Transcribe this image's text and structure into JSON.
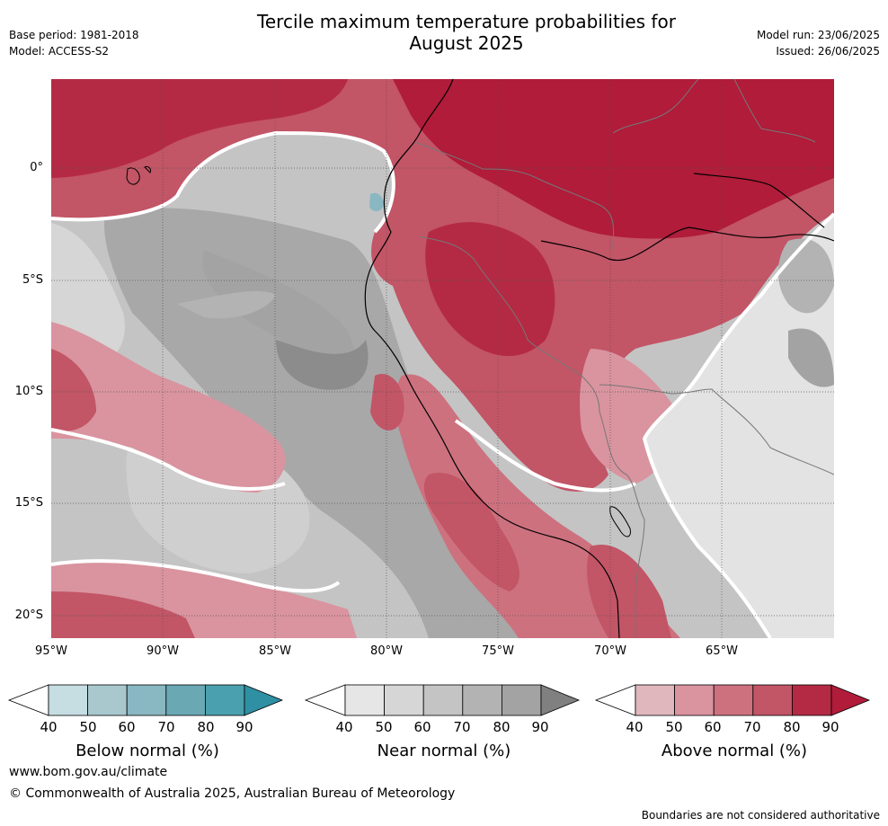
{
  "header": {
    "title_line1": "Tercile maximum temperature probabilities for",
    "title_line2": "August 2025",
    "base_period": "Base period: 1981-2018",
    "model": "Model: ACCESS-S2",
    "model_run": "Model run: 23/06/2025",
    "issued": "Issued: 26/06/2025"
  },
  "map": {
    "lat_labels": [
      "0°",
      "5°S",
      "10°S",
      "15°S",
      "20°S"
    ],
    "lon_labels": [
      "95°W",
      "90°W",
      "85°W",
      "80°W",
      "75°W",
      "70°W",
      "65°W"
    ],
    "colors": {
      "ocean_bg": "#c9c9c9",
      "land_bg": "#d8d8d8",
      "above": [
        "#e0b7bd",
        "#d9949f",
        "#cd717f",
        "#c25566",
        "#b42a44",
        "#b01c3a"
      ],
      "near": [
        "#e6e6e6",
        "#d6d6d6",
        "#c4c4c4",
        "#b3b3b3",
        "#a3a3a3",
        "#8c8c8c"
      ],
      "below": [
        "#c6dde2",
        "#a8c8ce",
        "#89b7c2",
        "#6aa8b4",
        "#4aa0ae",
        "#2f8fa3"
      ]
    }
  },
  "colorbars": {
    "ticks": [
      "40",
      "50",
      "60",
      "70",
      "80",
      "90"
    ],
    "below": {
      "label": "Below normal (%)",
      "colors": [
        "#ffffff",
        "#c6dde2",
        "#a8c8ce",
        "#89b7c2",
        "#6aa8b4",
        "#4aa0ae",
        "#2f8fa3"
      ]
    },
    "near": {
      "label": "Near normal (%)",
      "colors": [
        "#ffffff",
        "#e6e6e6",
        "#d6d6d6",
        "#c4c4c4",
        "#b3b3b3",
        "#a3a3a3",
        "#808080"
      ]
    },
    "above": {
      "label": "Above normal (%)",
      "colors": [
        "#ffffff",
        "#e0b7bd",
        "#d9949f",
        "#cd717f",
        "#c25566",
        "#b42a44",
        "#b01c3a"
      ]
    }
  },
  "footer": {
    "url": "www.bom.gov.au/climate",
    "copyright": "© Commonwealth of Australia 2025, Australian Bureau of Meteorology",
    "disclaimer": "Boundaries are not considered authoritative"
  }
}
